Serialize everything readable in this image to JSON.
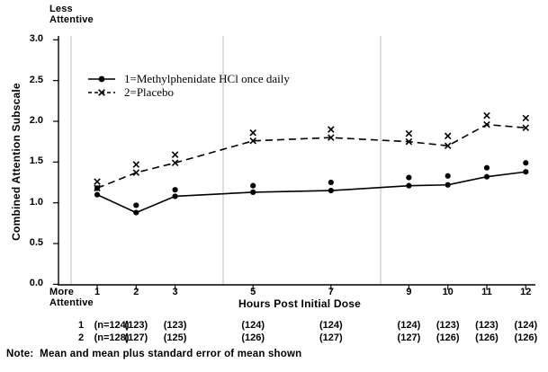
{
  "figure": {
    "top_left_label": {
      "line1": "Less",
      "line2": "Attentive"
    },
    "bottom_left_label": {
      "line1": "More",
      "line2": "Attentive"
    },
    "note": "Note:  Mean and mean plus standard error of mean shown"
  },
  "chart_data": {
    "type": "line",
    "title": "",
    "xlabel": "Hours Post Initial Dose",
    "ylabel": "Combined Attention Subscale",
    "ylim": [
      0.0,
      3.0
    ],
    "yticks": [
      "3.0",
      "2.5",
      "2.0",
      "1.5",
      "1.0",
      "0.5",
      "0.0"
    ],
    "x": [
      1,
      2,
      3,
      5,
      7,
      9,
      10,
      11,
      12
    ],
    "x_tick_labels": [
      "1",
      "2",
      "3",
      "5",
      "7",
      "9",
      "10",
      "11",
      "12"
    ],
    "grid": "vertical-separators-on",
    "legend_position": "upper-left-inside",
    "series": [
      {
        "name": "1=Methylphenidate HCl once daily",
        "marker": "filled-circle",
        "line": "solid",
        "mean": [
          1.1,
          0.88,
          1.08,
          1.13,
          1.15,
          1.21,
          1.22,
          1.32,
          1.38
        ],
        "mean_plus_se": [
          1.18,
          0.97,
          1.16,
          1.21,
          1.25,
          1.31,
          1.33,
          1.43,
          1.49
        ]
      },
      {
        "name": "2=Placebo",
        "marker": "x",
        "line": "dashed",
        "mean": [
          1.18,
          1.37,
          1.49,
          1.76,
          1.8,
          1.75,
          1.7,
          1.96,
          1.92
        ],
        "mean_plus_se": [
          1.26,
          1.47,
          1.59,
          1.86,
          1.9,
          1.85,
          1.82,
          2.07,
          2.04
        ]
      }
    ],
    "sample_size_rows": [
      {
        "label": "1",
        "values": [
          "(n=124)",
          "(123)",
          "(123)",
          "(124)",
          "(124)",
          "(124)",
          "(123)",
          "(123)",
          "(124)"
        ]
      },
      {
        "label": "2",
        "values": [
          "(n=128)",
          "(127)",
          "(125)",
          "(126)",
          "(127)",
          "(127)",
          "(126)",
          "(126)",
          "(126)"
        ]
      }
    ]
  },
  "colors": {
    "ink": "#000000",
    "grid": "#c9c9c9"
  }
}
